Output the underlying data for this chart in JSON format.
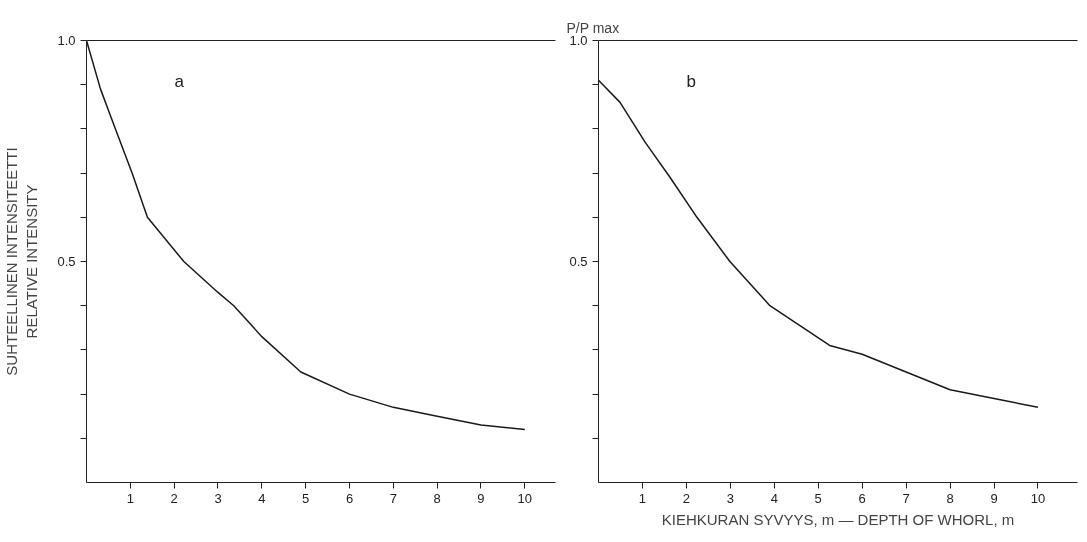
{
  "chart_data": [
    {
      "type": "line",
      "title": "a",
      "ylabel": "SUHTEELLINEN INTENSITEETTI\nRELATIVE INTENSITY",
      "series": [
        {
          "color": "#1a1a1a",
          "x": [
            0,
            0.32,
            0.66,
            1.04,
            1.39,
            2.22,
            3.0,
            3.36,
            4.0,
            4.89,
            6,
            7,
            8,
            9,
            10
          ],
          "values": [
            1.0,
            0.89,
            0.8,
            0.7,
            0.6,
            0.5,
            0.43,
            0.4,
            0.33,
            0.25,
            0.2,
            0.17,
            0.15,
            0.13,
            0.12
          ]
        }
      ],
      "xlim": [
        0,
        10.7
      ],
      "ylim": [
        0,
        1.0
      ],
      "xticks": [
        1,
        2,
        3,
        4,
        5,
        6,
        7,
        8,
        9,
        10
      ],
      "yticks": [
        {
          "value": 0.1,
          "label": null
        },
        {
          "value": 0.2,
          "label": null
        },
        {
          "value": 0.3,
          "label": null
        },
        {
          "value": 0.4,
          "label": null
        },
        0.5,
        {
          "value": 0.6,
          "label": null
        },
        {
          "value": 0.7,
          "label": null
        },
        {
          "value": 0.8,
          "label": null
        },
        {
          "value": 0.9,
          "label": null
        },
        {
          "value": 1.0,
          "label": "1.0"
        }
      ],
      "grid": false,
      "marker": "none",
      "line_style": "solid"
    },
    {
      "type": "line",
      "title": "b",
      "ylabel": "P/P max",
      "xlabel": "KIEHKURAN SYVYYS, m — DEPTH OF WHORL, m",
      "series": [
        {
          "color": "#1a1a1a",
          "x": [
            0,
            0.49,
            1.06,
            1.63,
            2.24,
            2.99,
            3.9,
            5.26,
            6,
            7,
            8,
            9,
            10
          ],
          "values": [
            0.91,
            0.86,
            0.77,
            0.69,
            0.6,
            0.5,
            0.4,
            0.31,
            0.29,
            0.25,
            0.21,
            0.19,
            0.17
          ]
        }
      ],
      "xlim": [
        0,
        10.9
      ],
      "ylim": [
        0,
        1.0
      ],
      "xticks": [
        1,
        2,
        3,
        4,
        5,
        6,
        7,
        8,
        9,
        10
      ],
      "yticks": [
        {
          "value": 0.1,
          "label": null
        },
        {
          "value": 0.2,
          "label": null
        },
        {
          "value": 0.3,
          "label": null
        },
        {
          "value": 0.4,
          "label": null
        },
        0.5,
        {
          "value": 0.6,
          "label": null
        },
        {
          "value": 0.7,
          "label": null
        },
        {
          "value": 0.8,
          "label": null
        },
        {
          "value": 0.9,
          "label": null
        },
        {
          "value": 1.0,
          "label": "1.0"
        }
      ],
      "grid": false,
      "marker": "none",
      "line_style": "solid"
    }
  ]
}
